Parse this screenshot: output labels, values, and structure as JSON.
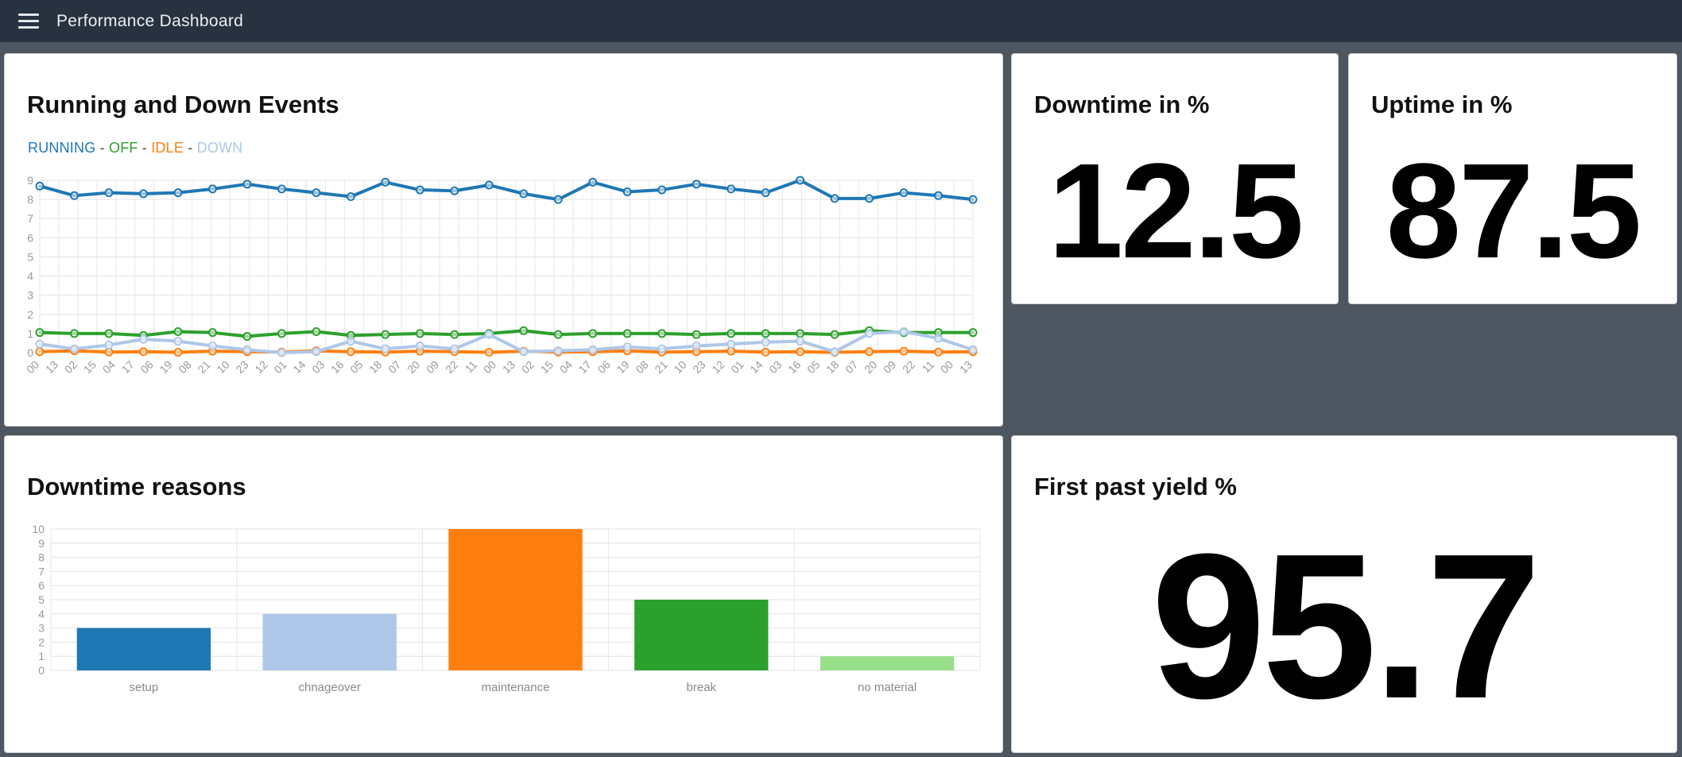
{
  "topbar": {
    "title": "Performance Dashboard",
    "menu_icon": "hamburger-menu-icon"
  },
  "colors": {
    "page_background": "#4d5661",
    "topbar_background": "#273140",
    "card_background": "#ffffff",
    "metric_number": "#000000",
    "grid_line": "#e4e4e4",
    "axis_label": "#999999",
    "series_running": "#1f77b4",
    "series_off": "#2ca02c",
    "series_idle": "#ff7f0e",
    "series_down": "#aec7e8"
  },
  "cards": {
    "running_events": {
      "title": "Running and Down Events"
    },
    "downtime_pct": {
      "title": "Downtime in %",
      "value": "12.5"
    },
    "uptime_pct": {
      "title": "Uptime in %",
      "value": "87.5"
    },
    "downtime_reasons": {
      "title": "Downtime reasons"
    },
    "first_pass_yield": {
      "title": "First past yield %",
      "value": "95.7"
    }
  },
  "chart_data": [
    {
      "type": "line",
      "title": "Running and Down Events",
      "legend_position": "top-left",
      "legend_separator": " - ",
      "grid": true,
      "ylim": [
        0,
        9
      ],
      "y_ticks": [
        0,
        1,
        2,
        3,
        4,
        5,
        6,
        7,
        8,
        9
      ],
      "x_labels": [
        "00",
        "13",
        "02",
        "15",
        "04",
        "17",
        "06",
        "19",
        "08",
        "21",
        "10",
        "23",
        "12",
        "01",
        "14",
        "03",
        "16",
        "05",
        "18",
        "07",
        "20",
        "09",
        "22",
        "11",
        "00",
        "13",
        "02",
        "15",
        "04",
        "17",
        "06",
        "19",
        "08",
        "21",
        "10",
        "23",
        "12",
        "01",
        "14",
        "03",
        "16",
        "05",
        "18",
        "07",
        "20",
        "09",
        "22",
        "11",
        "00",
        "13"
      ],
      "series": [
        {
          "name": "RUNNING",
          "color": "#1f77b4",
          "values": [
            8.7,
            8.2,
            8.35,
            8.3,
            8.35,
            8.55,
            8.8,
            8.55,
            8.35,
            8.15,
            8.9,
            8.5,
            8.45,
            8.75,
            8.3,
            8.0,
            8.9,
            8.4,
            8.5,
            8.8,
            8.55,
            8.35,
            9.0,
            8.05,
            8.05,
            8.35,
            8.2,
            8.0
          ]
        },
        {
          "name": "OFF",
          "color": "#2ca02c",
          "values": [
            1.05,
            1.0,
            1.0,
            0.9,
            1.1,
            1.05,
            0.85,
            1.0,
            1.1,
            0.9,
            0.95,
            1.0,
            0.95,
            1.0,
            1.15,
            0.95,
            1.0,
            1.0,
            1.0,
            0.95,
            1.0,
            1.0,
            1.0,
            0.95,
            1.15,
            1.05,
            1.05,
            1.05
          ]
        },
        {
          "name": "IDLE",
          "color": "#ff7f0e",
          "values": [
            0.05,
            0.1,
            0.03,
            0.05,
            0.02,
            0.08,
            0.05,
            0.03,
            0.1,
            0.05,
            0.03,
            0.08,
            0.05,
            0.02,
            0.08,
            0.03,
            0.05,
            0.1,
            0.03,
            0.05,
            0.08,
            0.03,
            0.05,
            0.02,
            0.05,
            0.08,
            0.03,
            0.05
          ]
        },
        {
          "name": "DOWN",
          "color": "#aec7e8",
          "values": [
            0.45,
            0.2,
            0.4,
            0.7,
            0.6,
            0.35,
            0.15,
            0.0,
            0.05,
            0.6,
            0.2,
            0.35,
            0.2,
            0.95,
            0.05,
            0.1,
            0.15,
            0.3,
            0.2,
            0.35,
            0.45,
            0.55,
            0.6,
            0.05,
            1.0,
            1.1,
            0.75,
            0.15
          ]
        }
      ]
    },
    {
      "type": "bar",
      "title": "Downtime reasons",
      "grid": true,
      "ylim": [
        0,
        10
      ],
      "y_ticks": [
        0,
        1,
        2,
        3,
        4,
        5,
        6,
        7,
        8,
        9,
        10
      ],
      "categories": [
        "setup",
        "chnageover",
        "maintenance",
        "break",
        "no material"
      ],
      "values": [
        3,
        4,
        10,
        5,
        1
      ],
      "colors": [
        "#1f77b4",
        "#aec7e8",
        "#ff7f0e",
        "#2ca02c",
        "#98df8a"
      ]
    }
  ]
}
